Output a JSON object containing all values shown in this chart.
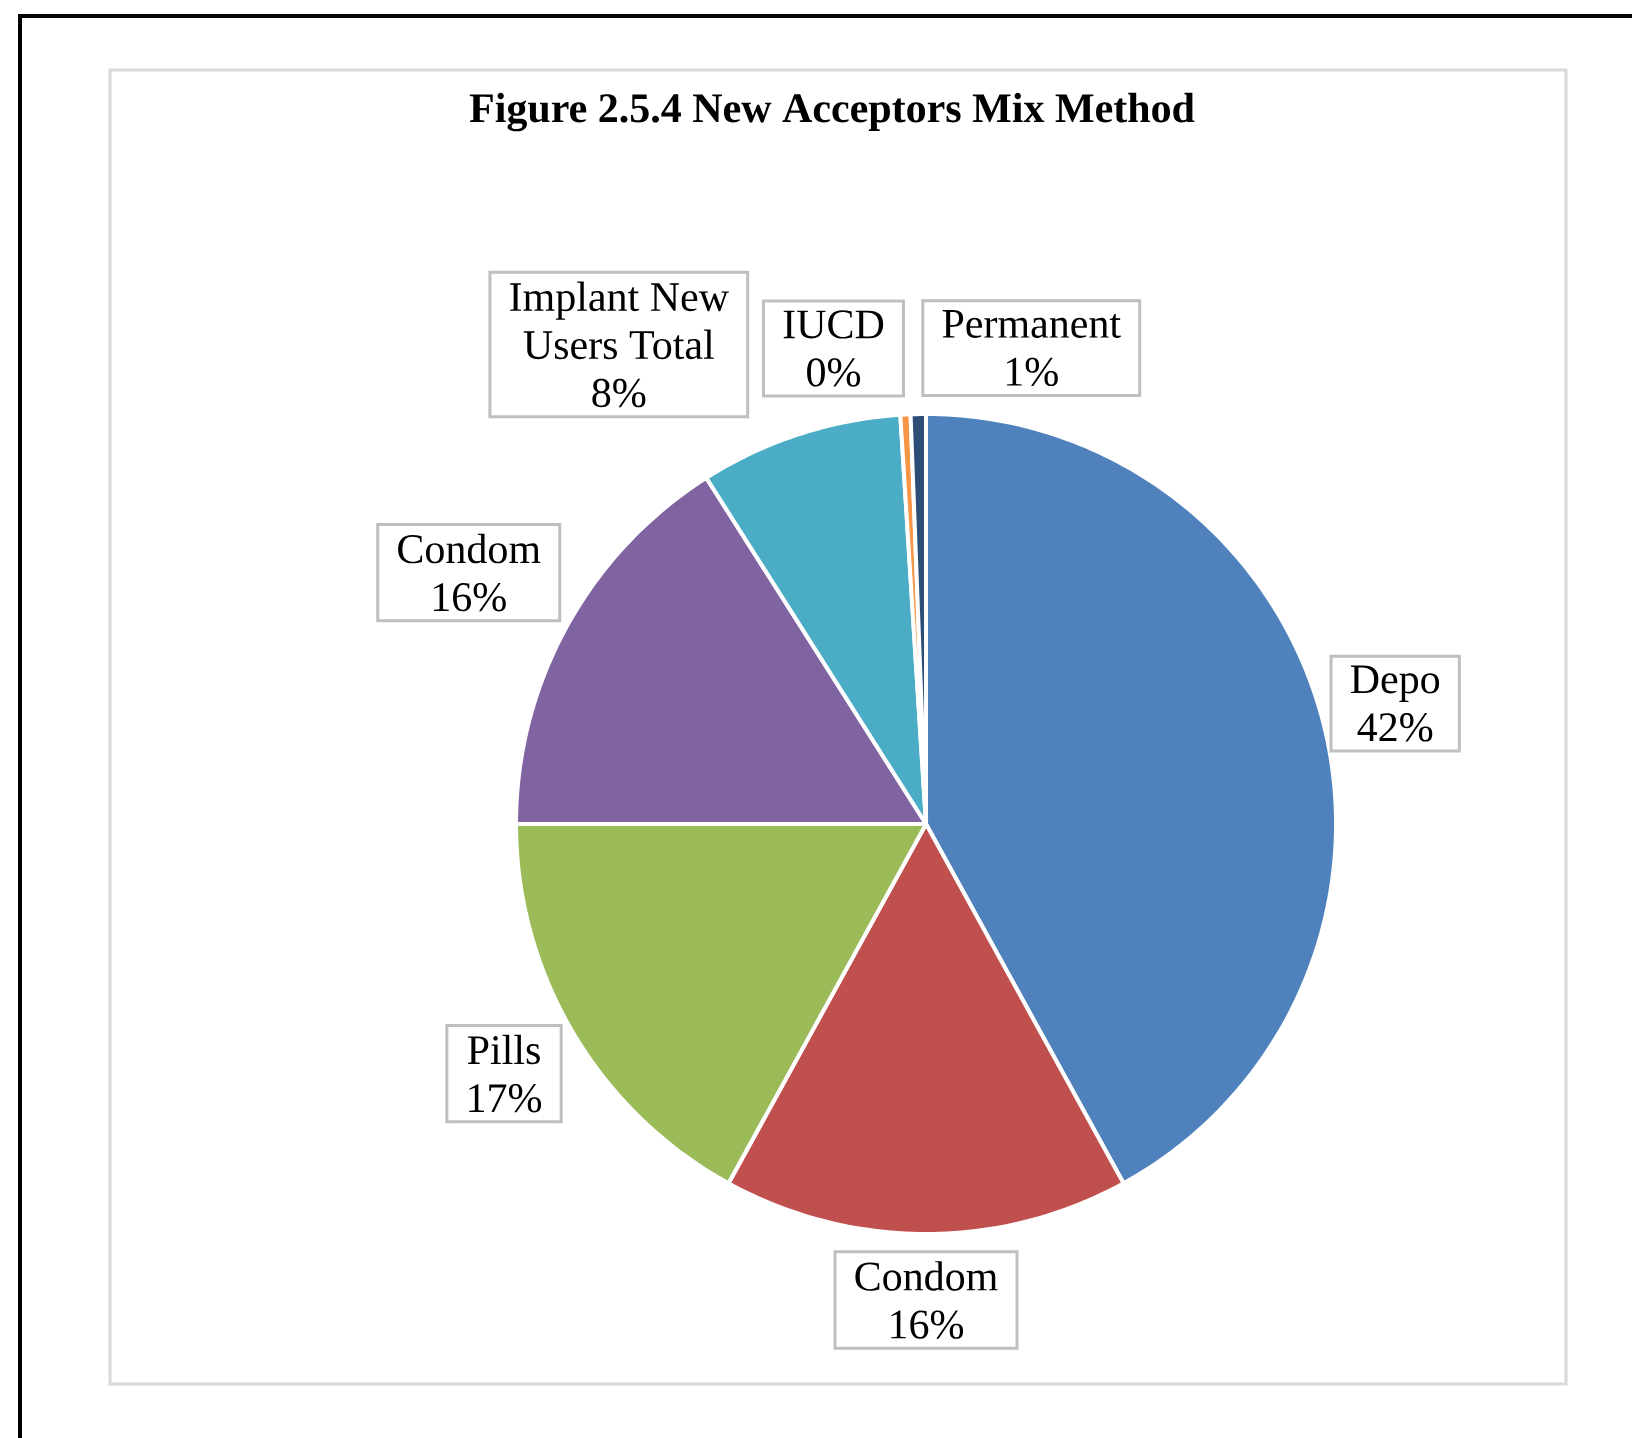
{
  "chart_data": {
    "type": "pie",
    "title": "Figure 2.5.4 New Acceptors Mix Method",
    "categories": [
      "Depo",
      "Condom",
      "Pills",
      "Condom",
      "Implant New Users Total",
      "IUCD",
      "Permanent"
    ],
    "values": [
      42,
      16,
      17,
      16,
      8,
      0.4,
      0.6
    ],
    "value_labels": [
      "42%",
      "16%",
      "17%",
      "16%",
      "8%",
      "0%",
      "1%"
    ],
    "colors": [
      "#4f81bd",
      "#c0504d",
      "#9bbb59",
      "#8064a2",
      "#4bacc6",
      "#f79646",
      "#2c4d75"
    ]
  }
}
